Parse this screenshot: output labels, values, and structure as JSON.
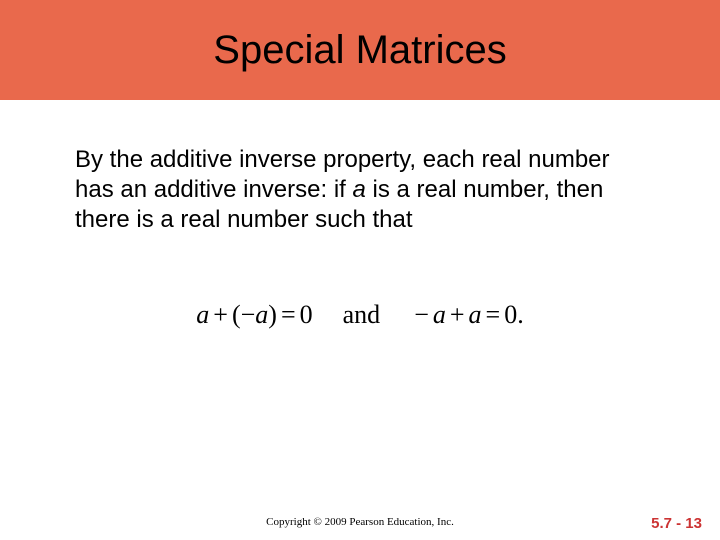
{
  "title": {
    "text": "Special Matrices",
    "bg_color": "#e9694c",
    "font_size": 40,
    "text_color": "#000000",
    "height": 100
  },
  "body": {
    "before_a": "By the additive inverse property, each real number has an additive inverse: if ",
    "a": "a",
    "after_a": " is a real number, then there is a real number such that",
    "font_size": 24,
    "text_color": "#000000"
  },
  "equation": {
    "lhs1_a": "a",
    "lhs1_plus": "+",
    "lhs1_open": "(",
    "lhs1_neg": "−",
    "lhs1_a2": "a",
    "lhs1_close": ")",
    "eq1": "=",
    "rhs1": "0",
    "and": "and",
    "lhs2_neg": "−",
    "lhs2_a": "a",
    "lhs2_plus": "+",
    "lhs2_a2": "a",
    "eq2": "=",
    "rhs2": "0.",
    "font_size": 26
  },
  "footer": {
    "copyright": "Copyright © 2009 Pearson Education, Inc.",
    "page": "5.7 - 13",
    "page_color": "#cc3333"
  }
}
